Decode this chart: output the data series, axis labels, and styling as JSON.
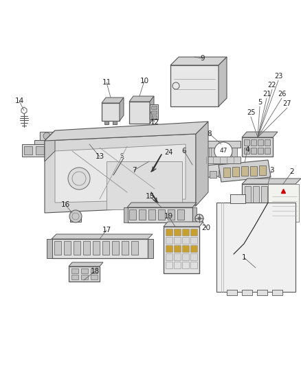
{
  "bg_color": "#ffffff",
  "fig_width": 4.38,
  "fig_height": 5.33,
  "dpi": 100,
  "line_color": "#555555",
  "label_color": "#222222",
  "label_fs": 7.5
}
